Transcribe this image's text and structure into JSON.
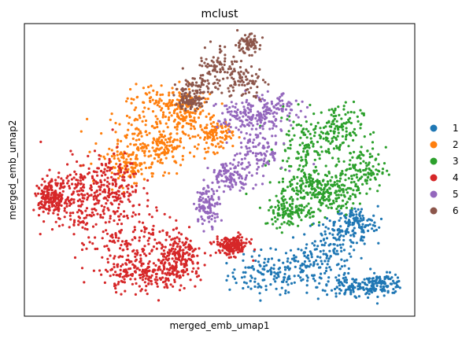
{
  "chart_data": {
    "type": "scatter",
    "title": "mclust",
    "xlabel": "merged_emb_umap1",
    "ylabel": "merged_emb_umap2",
    "xlim": [
      0,
      100
    ],
    "ylim": [
      0,
      100
    ],
    "grid": false,
    "legend_position": "right",
    "series": [
      {
        "name": "1",
        "color": "#1f77b4",
        "point_count": 650,
        "regions": [
          {
            "cx": 62,
            "cy": 14,
            "rx": 9,
            "ry": 6
          },
          {
            "cx": 72,
            "cy": 18,
            "rx": 9,
            "ry": 8
          },
          {
            "cx": 80,
            "cy": 26,
            "rx": 7,
            "ry": 7
          },
          {
            "cx": 84,
            "cy": 10,
            "rx": 8,
            "ry": 4
          },
          {
            "cx": 92,
            "cy": 11,
            "rx": 5,
            "ry": 3
          },
          {
            "cx": 85,
            "cy": 32,
            "rx": 5,
            "ry": 5
          }
        ]
      },
      {
        "name": "2",
        "color": "#ff7f0e",
        "point_count": 650,
        "regions": [
          {
            "cx": 29,
            "cy": 62,
            "rx": 9,
            "ry": 9
          },
          {
            "cx": 36,
            "cy": 73,
            "rx": 8,
            "ry": 6
          },
          {
            "cx": 42,
            "cy": 68,
            "rx": 6,
            "ry": 7
          },
          {
            "cx": 27,
            "cy": 51,
            "rx": 6,
            "ry": 5
          },
          {
            "cx": 49,
            "cy": 62,
            "rx": 4,
            "ry": 5
          },
          {
            "cx": 36,
            "cy": 57,
            "rx": 5,
            "ry": 6
          }
        ]
      },
      {
        "name": "3",
        "color": "#2ca02c",
        "point_count": 720,
        "regions": [
          {
            "cx": 72,
            "cy": 58,
            "rx": 7,
            "ry": 10
          },
          {
            "cx": 80,
            "cy": 64,
            "rx": 6,
            "ry": 8
          },
          {
            "cx": 86,
            "cy": 50,
            "rx": 6,
            "ry": 7
          },
          {
            "cx": 73,
            "cy": 44,
            "rx": 7,
            "ry": 6
          },
          {
            "cx": 68,
            "cy": 36,
            "rx": 6,
            "ry": 5
          },
          {
            "cx": 79,
            "cy": 42,
            "rx": 6,
            "ry": 6
          }
        ]
      },
      {
        "name": "4",
        "color": "#d62728",
        "point_count": 1250,
        "regions": [
          {
            "cx": 14,
            "cy": 38,
            "rx": 9,
            "ry": 11
          },
          {
            "cx": 21,
            "cy": 46,
            "rx": 8,
            "ry": 9
          },
          {
            "cx": 28,
            "cy": 26,
            "rx": 10,
            "ry": 11
          },
          {
            "cx": 31,
            "cy": 14,
            "rx": 10,
            "ry": 5
          },
          {
            "cx": 40,
            "cy": 20,
            "rx": 5,
            "ry": 7
          },
          {
            "cx": 7,
            "cy": 41,
            "rx": 4,
            "ry": 5
          },
          {
            "cx": 53,
            "cy": 24,
            "rx": 4,
            "ry": 3
          }
        ]
      },
      {
        "name": "5",
        "color": "#9467bd",
        "point_count": 550,
        "regions": [
          {
            "cx": 60,
            "cy": 56,
            "rx": 6,
            "ry": 8
          },
          {
            "cx": 56,
            "cy": 68,
            "rx": 6,
            "ry": 6
          },
          {
            "cx": 64,
            "cy": 70,
            "rx": 6,
            "ry": 5
          },
          {
            "cx": 53,
            "cy": 48,
            "rx": 5,
            "ry": 4
          },
          {
            "cx": 47,
            "cy": 38,
            "rx": 3,
            "ry": 6
          }
        ]
      },
      {
        "name": "6",
        "color": "#8c564b",
        "point_count": 380,
        "regions": [
          {
            "cx": 50,
            "cy": 86,
            "rx": 5,
            "ry": 6
          },
          {
            "cx": 56,
            "cy": 80,
            "rx": 5,
            "ry": 5
          },
          {
            "cx": 44,
            "cy": 78,
            "rx": 5,
            "ry": 4
          },
          {
            "cx": 57,
            "cy": 93,
            "rx": 3,
            "ry": 3
          },
          {
            "cx": 42,
            "cy": 73,
            "rx": 3,
            "ry": 2
          }
        ]
      }
    ]
  }
}
